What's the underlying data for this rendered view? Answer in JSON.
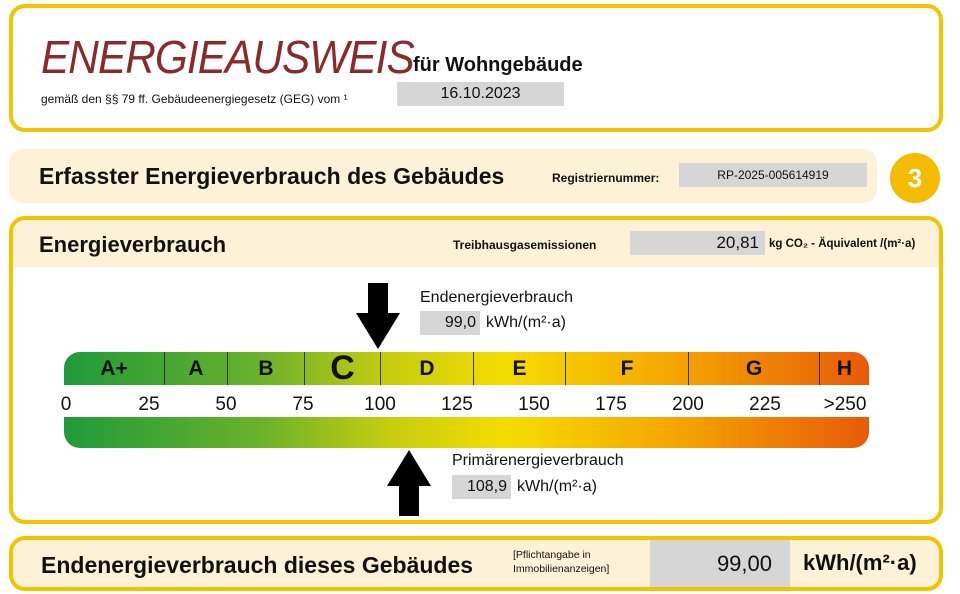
{
  "header": {
    "title": "ENERGIEAUSWEIS",
    "subtitle": "für Wohngebäude",
    "legal": "gemäß den §§ 79 ff. Gebäudeenergiegesetz (GEG) vom ¹",
    "date": "16.10.2023"
  },
  "section": {
    "title": "Erfasster Energieverbrauch des Gebäudes",
    "reg_label": "Registriernummer:",
    "reg_number": "RP-2025-005614919",
    "page_badge": "3"
  },
  "consumption": {
    "title": "Energieverbrauch",
    "ghg_label": "Treibhausgasemissionen",
    "ghg_value": "20,81",
    "ghg_unit": "kg CO₂ - Äquivalent  /(m²·a)",
    "classes": [
      "A+",
      "A",
      "B",
      "C",
      "D",
      "E",
      "F",
      "G",
      "H"
    ],
    "current_class": "C",
    "ticks": [
      "0",
      "25",
      "50",
      "75",
      "100",
      "125",
      "150",
      "175",
      "200",
      "225",
      ">250"
    ],
    "end_label": "Endenergieverbrauch",
    "end_value": "99,0",
    "end_unit": "kWh/(m²·a)",
    "primary_label": "Primärenergieverbrauch",
    "primary_value": "108,9",
    "primary_unit": "kWh/(m²·a)"
  },
  "footer": {
    "title": "Endenergieverbrauch dieses Gebäudes",
    "note": "[Pflichtangabe in Immobilienanzeigen]",
    "value": "99,00",
    "unit": "kWh/(m²·a)"
  },
  "colors": {
    "frame": "#f3c300",
    "title": "#8b2a2a",
    "panel": "#fdf1d8"
  }
}
